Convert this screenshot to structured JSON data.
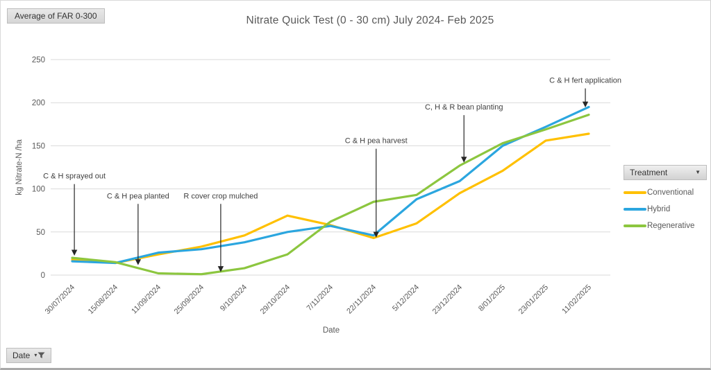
{
  "field_buttons": {
    "value": "Average of FAR 0-300",
    "legend": "Treatment",
    "axis": "Date"
  },
  "icons": {
    "treatment_dropdown": "▼",
    "date_dropdown": "▾",
    "date_filter": "funnel"
  },
  "colors": {
    "conventional": "#FFC000",
    "hybrid": "#2BA6DF",
    "regenerative": "#8CC63F",
    "gridline": "#D9D9D9",
    "axis_text": "#595959",
    "annotation_text": "#3F3F3F"
  },
  "chart_data": {
    "type": "line",
    "title": "Nitrate Quick Test (0 - 30 cm) July 2024- Feb 2025",
    "xlabel": "Date",
    "ylabel": "kg Nitrate-N /ha",
    "ylim": [
      0,
      250
    ],
    "ytick_step": 50,
    "grid": true,
    "legend_position": "right",
    "categories": [
      "30/07/2024",
      "15/08/2024",
      "11/09/2024",
      "25/09/2024",
      "9/10/2024",
      "29/10/2024",
      "7/11/2024",
      "22/11/2024",
      "5/12/2024",
      "23/12/2024",
      "8/01/2025",
      "23/01/2025",
      "11/02/2025"
    ],
    "series": [
      {
        "name": "Conventional",
        "color": "#FFC000",
        "values": [
          18,
          14,
          24,
          33,
          46,
          69,
          58,
          43,
          60,
          95,
          121,
          156,
          164
        ]
      },
      {
        "name": "Hybrid",
        "color": "#2BA6DF",
        "values": [
          16,
          14,
          26,
          30,
          38,
          50,
          57,
          46,
          88,
          109,
          150,
          172,
          195
        ]
      },
      {
        "name": "Regenerative",
        "color": "#8CC63F",
        "values": [
          20,
          15,
          2,
          1,
          8,
          24,
          62,
          85,
          93,
          127,
          153,
          169,
          186
        ]
      }
    ],
    "annotations": [
      {
        "label": "C & H sprayed out",
        "x_index": 0.05,
        "tip_value": 24,
        "label_value": 112
      },
      {
        "label": "C & H pea planted",
        "x_index": 1.53,
        "tip_value": 13,
        "label_value": 89
      },
      {
        "label": "R cover crop mulched",
        "x_index": 3.45,
        "tip_value": 5,
        "label_value": 89
      },
      {
        "label": "C & H pea harvest",
        "x_index": 7.06,
        "tip_value": 45,
        "label_value": 153
      },
      {
        "label": "C, H & R bean planting",
        "x_index": 9.1,
        "tip_value": 132,
        "label_value": 192
      },
      {
        "label": "C & H fert application",
        "x_index": 11.92,
        "tip_value": 196,
        "label_value": 223
      }
    ]
  }
}
